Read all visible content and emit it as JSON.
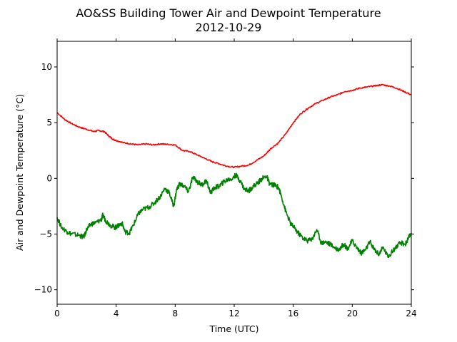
{
  "chart_data": {
    "type": "line",
    "title": "AO&SS Building Tower Air and Dewpoint Temperature",
    "subtitle": "2012-10-29",
    "xlabel": "Time (UTC)",
    "ylabel": "Air and Dewpoint Temperature (°C)",
    "xlim": [
      0,
      24
    ],
    "ylim": [
      -11.3,
      12.3
    ],
    "xticks": [
      0,
      4,
      8,
      12,
      16,
      20,
      24
    ],
    "xtick_labels": [
      "0",
      "4",
      "8",
      "12",
      "16",
      "20",
      "24"
    ],
    "yticks": [
      -10,
      -5,
      0,
      5,
      10
    ],
    "ytick_labels": [
      "−10",
      "−5",
      "0",
      "5",
      "10"
    ],
    "grid": false,
    "series": [
      {
        "color": "#ff0000",
        "x": [
          0,
          0.5,
          1,
          1.5,
          2,
          2.5,
          2.8,
          3.2,
          3.5,
          3.8,
          4,
          4.5,
          5,
          5.5,
          6,
          6.5,
          7,
          7.5,
          8,
          8.5,
          9,
          9.5,
          10,
          10.5,
          11,
          11.5,
          12,
          12.5,
          13,
          13.5,
          14,
          14.5,
          15,
          15.5,
          16,
          16.5,
          17,
          17.5,
          18,
          18.5,
          19,
          19.5,
          20,
          20.5,
          21,
          21.5,
          22,
          22.5,
          23,
          23.5,
          24
        ],
        "y": [
          5.9,
          5.3,
          4.9,
          4.6,
          4.4,
          4.2,
          4.3,
          4.2,
          3.8,
          3.5,
          3.4,
          3.2,
          3.1,
          3.0,
          3.1,
          3.0,
          3.1,
          3.05,
          3.0,
          2.5,
          2.4,
          2.1,
          1.8,
          1.5,
          1.3,
          1.1,
          1.0,
          1.1,
          1.2,
          1.6,
          2.0,
          2.7,
          3.2,
          4.0,
          5.0,
          5.8,
          6.3,
          6.7,
          7.0,
          7.3,
          7.5,
          7.8,
          7.9,
          8.1,
          8.2,
          8.3,
          8.4,
          8.3,
          8.1,
          7.8,
          7.5
        ]
      },
      {
        "color": "#008000",
        "x": [
          0,
          0.3,
          0.7,
          1,
          1.5,
          1.8,
          2,
          2.3,
          2.6,
          3,
          3.1,
          3.3,
          3.6,
          3.9,
          4.1,
          4.4,
          4.6,
          4.9,
          5.2,
          5.5,
          5.8,
          6.2,
          6.6,
          7,
          7.3,
          7.6,
          7.9,
          8.1,
          8.3,
          8.6,
          8.9,
          9.2,
          9.5,
          9.8,
          10.1,
          10.4,
          10.7,
          11,
          11.3,
          11.6,
          11.9,
          12.1,
          12.4,
          12.7,
          13,
          13.3,
          13.6,
          13.9,
          14.2,
          14.4,
          14.7,
          15,
          15.2,
          15.5,
          15.8,
          16.1,
          16.4,
          16.7,
          17,
          17.3,
          17.6,
          17.9,
          18.2,
          18.5,
          18.8,
          19.1,
          19.4,
          19.7,
          20,
          20.3,
          20.6,
          20.9,
          21.2,
          21.5,
          21.8,
          22.1,
          22.4,
          22.7,
          23,
          23.3,
          23.6,
          23.8,
          24
        ],
        "y": [
          -3.5,
          -4.4,
          -4.8,
          -5.0,
          -5.1,
          -5.3,
          -4.6,
          -4.1,
          -4.0,
          -3.7,
          -3.3,
          -3.8,
          -4.2,
          -4.4,
          -4.3,
          -4.0,
          -4.8,
          -4.9,
          -4.1,
          -3.2,
          -2.8,
          -2.6,
          -2.2,
          -1.6,
          -0.9,
          -1.3,
          -2.5,
          -1.0,
          -0.5,
          -0.7,
          -1.2,
          0.1,
          -0.3,
          -0.6,
          -0.2,
          -1.3,
          -0.8,
          -0.7,
          -0.3,
          -0.1,
          0.0,
          0.3,
          -0.2,
          -1.0,
          -1.1,
          -0.7,
          -0.4,
          0.0,
          0.2,
          -0.5,
          -0.6,
          -0.8,
          -1.6,
          -3.0,
          -4.0,
          -4.5,
          -5.0,
          -5.4,
          -5.6,
          -5.4,
          -4.6,
          -5.8,
          -5.7,
          -5.9,
          -6.2,
          -6.4,
          -5.9,
          -6.3,
          -5.6,
          -6.2,
          -6.7,
          -6.4,
          -5.7,
          -6.4,
          -6.8,
          -6.2,
          -7.0,
          -6.6,
          -6.1,
          -5.8,
          -5.9,
          -5.4,
          -4.9
        ]
      }
    ]
  }
}
